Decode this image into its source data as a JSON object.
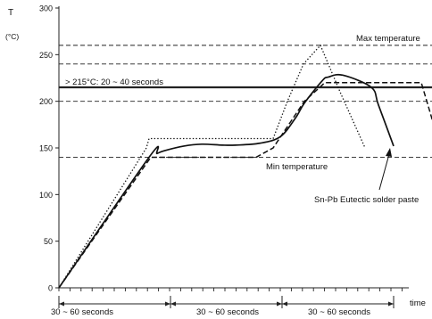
{
  "chart_data": {
    "type": "line",
    "title": "",
    "ylabel": "T",
    "yunit": "(°C)",
    "xlabel": "time",
    "ylim": [
      0,
      300
    ],
    "yticks": [
      0,
      50,
      100,
      150,
      200,
      250,
      300
    ],
    "grid": false,
    "reference_lines": [
      {
        "y": 260,
        "style": "dashed"
      },
      {
        "y": 240,
        "style": "dashed"
      },
      {
        "y": 215,
        "style": "solid-bold"
      },
      {
        "y": 200,
        "style": "dashed"
      },
      {
        "y": 140,
        "style": "dashed"
      }
    ],
    "annotations": {
      "max_temperature": "Max temperature",
      "above_215": "> 215°C: 20 ~ 40 seconds",
      "min_temperature": "Min temperature",
      "solder_paste": "Sn-Pb Eutectic solder paste"
    },
    "intervals": [
      {
        "label": "30 ~ 60 seconds",
        "start": 0,
        "end": 125
      },
      {
        "label": "30 ~ 60 seconds",
        "start": 125,
        "end": 250
      },
      {
        "label": "30 ~ 60 seconds",
        "start": 250,
        "end": 375
      }
    ],
    "series": [
      {
        "style": "solid",
        "x": [
          0,
          101,
          110,
          118,
          140,
          160,
          183,
          198,
          225,
          248,
          265,
          275,
          295,
          302,
          318,
          350,
          358,
          375
        ],
        "y": [
          0,
          140,
          144,
          147,
          152,
          154,
          153,
          153,
          155,
          162,
          182,
          198,
          222,
          226,
          228,
          215,
          196,
          152
        ]
      },
      {
        "style": "dashed",
        "x": [
          0,
          103,
          200,
          221,
          240,
          275,
          298,
          316,
          337,
          406,
          423
        ],
        "y": [
          0,
          140,
          140,
          140,
          150,
          200,
          220,
          220,
          220,
          220,
          165
        ]
      },
      {
        "style": "dotted",
        "x": [
          0,
          98,
          101,
          200,
          212,
          240,
          256,
          274,
          293,
          315,
          343
        ],
        "y": [
          0,
          150,
          160,
          160,
          160,
          160,
          200,
          240,
          260,
          210,
          150
        ]
      }
    ]
  }
}
